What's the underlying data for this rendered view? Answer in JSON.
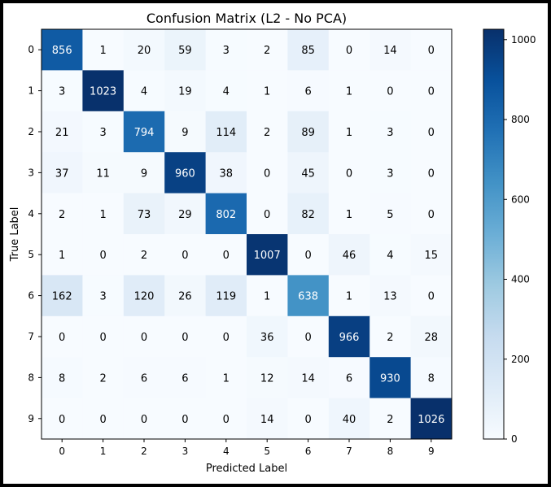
{
  "chart_data": {
    "type": "heatmap",
    "title": "Confusion Matrix (L2 - No PCA)",
    "xlabel": "Predicted Label",
    "ylabel": "True Label",
    "x_categories": [
      "0",
      "1",
      "2",
      "3",
      "4",
      "5",
      "6",
      "7",
      "8",
      "9"
    ],
    "y_categories": [
      "0",
      "1",
      "2",
      "3",
      "4",
      "5",
      "6",
      "7",
      "8",
      "9"
    ],
    "matrix": [
      [
        856,
        1,
        20,
        59,
        3,
        2,
        85,
        0,
        14,
        0
      ],
      [
        3,
        1023,
        4,
        19,
        4,
        1,
        6,
        1,
        0,
        0
      ],
      [
        21,
        3,
        794,
        9,
        114,
        2,
        89,
        1,
        3,
        0
      ],
      [
        37,
        11,
        9,
        960,
        38,
        0,
        45,
        0,
        3,
        0
      ],
      [
        2,
        1,
        73,
        29,
        802,
        0,
        82,
        1,
        5,
        0
      ],
      [
        1,
        0,
        2,
        0,
        0,
        1007,
        0,
        46,
        4,
        15
      ],
      [
        162,
        3,
        120,
        26,
        119,
        1,
        638,
        1,
        13,
        0
      ],
      [
        0,
        0,
        0,
        0,
        0,
        36,
        0,
        966,
        2,
        28
      ],
      [
        8,
        2,
        6,
        6,
        1,
        12,
        14,
        6,
        930,
        8
      ],
      [
        0,
        0,
        0,
        0,
        0,
        14,
        0,
        40,
        2,
        1026
      ]
    ],
    "colormap": "Blues",
    "colormap_stops": [
      "#f7fbff",
      "#deebf7",
      "#c6dbef",
      "#9ecae1",
      "#6baed6",
      "#4292c6",
      "#2171b5",
      "#08519c",
      "#08306b"
    ],
    "vmin": 0,
    "vmax": 1026,
    "colorbar_ticks": [
      0,
      200,
      400,
      600,
      800,
      1000
    ],
    "grid": false,
    "legend": "colorbar-right"
  }
}
